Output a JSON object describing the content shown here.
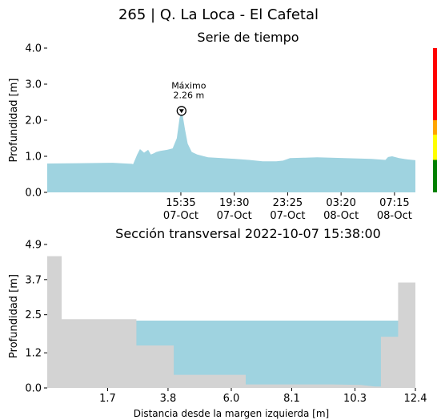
{
  "page_title": "265 | Q. La Loca - El Cafetal",
  "chart_data": [
    {
      "type": "area",
      "title": "Serie de tiempo",
      "xlabel": "",
      "ylabel": "Profundidad [m]",
      "ylim": [
        0,
        4.0
      ],
      "yticks": [
        "0.0",
        "1.0",
        "2.0",
        "3.0",
        "4.0"
      ],
      "xticks": [
        {
          "time": "15:35",
          "date": "07-Oct"
        },
        {
          "time": "19:30",
          "date": "07-Oct"
        },
        {
          "time": "23:25",
          "date": "07-Oct"
        },
        {
          "time": "03:20",
          "date": "08-Oct"
        },
        {
          "time": "07:15",
          "date": "08-Oct"
        }
      ],
      "x_hours_range": [
        -9.8,
        17.2
      ],
      "series": [
        {
          "color": "#9fd3e0",
          "x_hours": [
            -9.8,
            -7.5,
            -5.0,
            -3.6,
            -3.5,
            -3.2,
            -3.0,
            -2.7,
            -2.4,
            -2.2,
            -2.0,
            -1.8,
            -1.5,
            -1.0,
            -0.6,
            -0.3,
            -0.1,
            0.05,
            0.15,
            0.3,
            0.5,
            0.8,
            1.2,
            2.0,
            3.0,
            4.0,
            5.0,
            6.0,
            7.0,
            7.5,
            8.0,
            9.0,
            10.0,
            12.0,
            14.0,
            15.0,
            15.2,
            15.5,
            16.0,
            16.5,
            17.2
          ],
          "values": [
            0.8,
            0.81,
            0.82,
            0.79,
            0.78,
            1.05,
            1.2,
            1.1,
            1.18,
            1.05,
            1.08,
            1.12,
            1.15,
            1.18,
            1.22,
            1.5,
            2.05,
            2.26,
            2.1,
            1.75,
            1.35,
            1.12,
            1.05,
            0.97,
            0.95,
            0.93,
            0.9,
            0.86,
            0.86,
            0.88,
            0.95,
            0.96,
            0.97,
            0.95,
            0.93,
            0.9,
            0.98,
            1.0,
            0.95,
            0.92,
            0.89
          ]
        }
      ],
      "annotation": {
        "label": "Máximo",
        "value_text": "2.26 m",
        "x_hours": 0.05,
        "value": 2.26
      },
      "threshold_bar": [
        {
          "from": 0,
          "to": 0.9,
          "color": "#008000"
        },
        {
          "from": 0.9,
          "to": 1.6,
          "color": "#ffff00"
        },
        {
          "from": 1.6,
          "to": 2.0,
          "color": "#ffa500"
        },
        {
          "from": 2.0,
          "to": 4.0,
          "color": "#ff0000"
        }
      ]
    },
    {
      "type": "area",
      "title": "Sección transversal 2022-10-07 15:38:00",
      "xlabel": "Distancia desde la margen izquierda [m]",
      "ylabel": "Profundidad [m]",
      "xlim": [
        -0.4,
        12.4
      ],
      "ylim": [
        0,
        4.9
      ],
      "xticks": [
        "1.7",
        "3.8",
        "6.0",
        "8.1",
        "10.3",
        "12.4"
      ],
      "xtick_values": [
        1.7,
        3.8,
        6.0,
        8.1,
        10.3,
        12.4
      ],
      "yticks": [
        "0.0",
        "1.2",
        "2.5",
        "3.7",
        "4.9"
      ],
      "ytick_values": [
        0.0,
        1.2,
        2.5,
        3.7,
        4.9
      ],
      "water_level": 2.3,
      "water_color": "#9fd3e0",
      "ground_color": "#d3d3d3",
      "ground_profile": [
        [
          -0.4,
          4.5
        ],
        [
          0.1,
          4.5
        ],
        [
          0.1,
          2.35
        ],
        [
          2.7,
          2.35
        ],
        [
          2.7,
          1.45
        ],
        [
          4.0,
          1.45
        ],
        [
          4.0,
          0.45
        ],
        [
          6.5,
          0.45
        ],
        [
          6.5,
          0.12
        ],
        [
          9.5,
          0.12
        ],
        [
          10.5,
          0.1
        ],
        [
          11.0,
          0.05
        ],
        [
          11.2,
          0.05
        ],
        [
          11.2,
          1.75
        ],
        [
          11.8,
          1.75
        ],
        [
          11.8,
          3.6
        ],
        [
          12.4,
          3.6
        ]
      ]
    }
  ]
}
